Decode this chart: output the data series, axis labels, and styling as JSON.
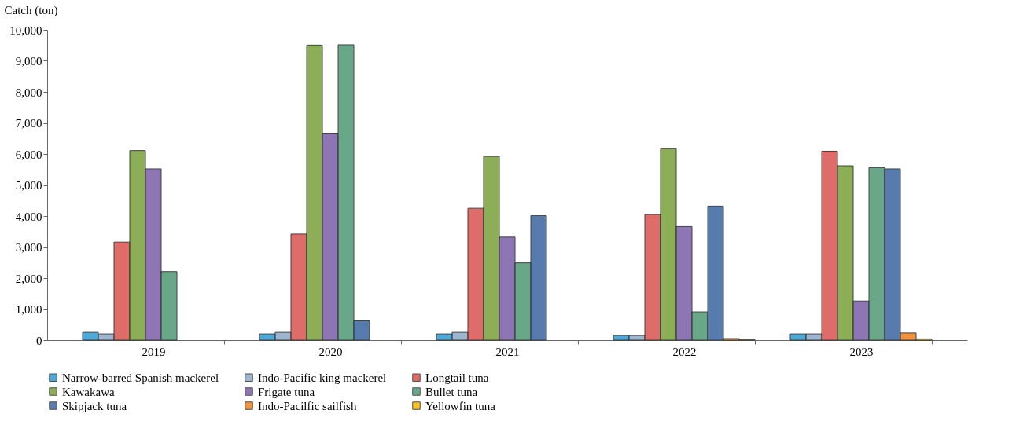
{
  "chart_data": {
    "type": "bar",
    "ylabel": "Catch (ton)",
    "categories": [
      "2019",
      "2020",
      "2021",
      "2022",
      "2023"
    ],
    "series": [
      {
        "name": "Narrow-barred Spanish mackerel",
        "color": "#2e9bd1",
        "values": [
          250,
          200,
          200,
          150,
          200
        ]
      },
      {
        "name": "Indo-Pacific king mackerel",
        "color": "#8ea9c8",
        "values": [
          200,
          250,
          250,
          150,
          200
        ]
      },
      {
        "name": "Longtail tuna",
        "color": "#d9534f",
        "values": [
          3160,
          3420,
          4250,
          4050,
          6090
        ]
      },
      {
        "name": "Kawakawa",
        "color": "#77a03a",
        "values": [
          6110,
          9510,
          5920,
          6170,
          5620
        ]
      },
      {
        "name": "Frigate tuna",
        "color": "#7b5ea7",
        "values": [
          5520,
          6670,
          3320,
          3660,
          1260
        ]
      },
      {
        "name": "Bullet tuna",
        "color": "#4e9a74",
        "values": [
          2210,
          9520,
          2490,
          910,
          5560
        ]
      },
      {
        "name": "Skipjack tuna",
        "color": "#3b64a0",
        "values": [
          null,
          620,
          4010,
          4320,
          5520
        ]
      },
      {
        "name": "Indo-Pacilfic sailfish",
        "color": "#f07f1a",
        "values": [
          null,
          null,
          null,
          50,
          230
        ]
      },
      {
        "name": "Yellowfin tuna",
        "color": "#f5b800",
        "values": [
          null,
          null,
          null,
          20,
          40
        ]
      }
    ],
    "ylim": [
      0,
      10000
    ],
    "yticks": [
      0,
      {
        "value": 1000,
        "label": "1,000"
      },
      {
        "value": 2000,
        "label": "2,000"
      },
      {
        "value": 3000,
        "label": "3,000"
      },
      {
        "value": 4000,
        "label": "4,000"
      },
      {
        "value": 5000,
        "label": "5,000"
      },
      {
        "value": 6000,
        "label": "6,000"
      },
      {
        "value": 7000,
        "label": "7,000"
      },
      {
        "value": 8000,
        "label": "8,000"
      },
      {
        "value": 9000,
        "label": "9,000"
      },
      {
        "value": 10000,
        "label": "10,000"
      }
    ],
    "grid": false,
    "legend": "bottom"
  }
}
